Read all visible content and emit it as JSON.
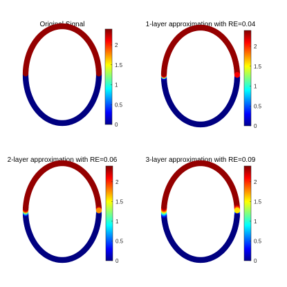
{
  "colormap": "jet",
  "chart_data": [
    {
      "type": "heatmap",
      "title": "Original Signal",
      "shape": "ellipse",
      "upper_half_value": 2.35,
      "lower_half_value": 0,
      "transition_band": "none",
      "clim": [
        0,
        2.4
      ],
      "colorbar_ticks": [
        "0",
        "0.5",
        "1",
        "1.5",
        "2"
      ],
      "colorbar_tick_values": [
        0,
        0.5,
        1,
        1.5,
        2
      ]
    },
    {
      "type": "heatmap",
      "title": "1-layer approximation with RE=0.04",
      "shape": "ellipse",
      "upper_half_value": 2.35,
      "lower_half_value": 0,
      "transition_band": "narrow",
      "clim": [
        0,
        2.4
      ],
      "colorbar_ticks": [
        "0",
        "0.5",
        "1",
        "1.5",
        "2"
      ],
      "colorbar_tick_values": [
        0,
        0.5,
        1,
        1.5,
        2
      ]
    },
    {
      "type": "heatmap",
      "title": "2-layer approximation with RE=0.06",
      "shape": "ellipse",
      "upper_half_value": 2.35,
      "lower_half_value": 0,
      "transition_band": "medium",
      "clim": [
        0,
        2.4
      ],
      "colorbar_ticks": [
        "0",
        "0.5",
        "1",
        "1.5",
        "2"
      ],
      "colorbar_tick_values": [
        0,
        0.5,
        1,
        1.5,
        2
      ]
    },
    {
      "type": "heatmap",
      "title": "3-layer approximation with RE=0.09",
      "shape": "ellipse",
      "upper_half_value": 2.35,
      "lower_half_value": 0,
      "transition_band": "wide",
      "clim": [
        0,
        2.4
      ],
      "colorbar_ticks": [
        "0",
        "0.5",
        "1",
        "1.5",
        "2"
      ],
      "colorbar_tick_values": [
        0,
        0.5,
        1,
        1.5,
        2
      ]
    }
  ]
}
